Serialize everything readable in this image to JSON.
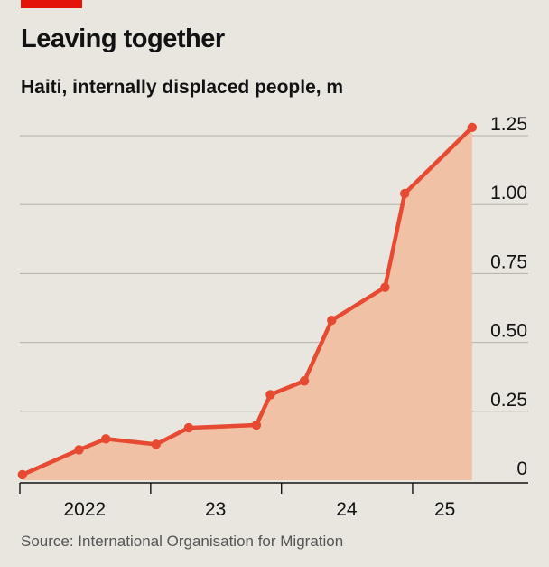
{
  "header": {
    "title": "Leaving together",
    "subtitle": "Haiti, internally displaced people, m"
  },
  "footer": {
    "source": "Source: International Organisation for Migration"
  },
  "colors": {
    "line": "#e64a32",
    "area": "#f1c1a6",
    "grid": "#b4b0a8",
    "axis": "#121212",
    "tag": "#e3120b"
  },
  "chart_data": {
    "type": "area",
    "title": "Leaving together",
    "subtitle": "Haiti, internally displaced people, m",
    "xlabel": "",
    "ylabel": "",
    "ylim": [
      0,
      1.25
    ],
    "xlim": [
      "2022-01-01",
      "2025-06-01"
    ],
    "y_ticks": [
      {
        "value": 0,
        "label": "0"
      },
      {
        "value": 0.25,
        "label": "0.25"
      },
      {
        "value": 0.5,
        "label": "0.50"
      },
      {
        "value": 0.75,
        "label": "0.75"
      },
      {
        "value": 1.0,
        "label": "1.00"
      },
      {
        "value": 1.25,
        "label": "1.25"
      }
    ],
    "x_tick_marks": [
      "2023-01-01",
      "2024-01-01",
      "2025-01-01"
    ],
    "x_labels": [
      {
        "date": "2022-07-01",
        "label": "2022"
      },
      {
        "date": "2023-07-01",
        "label": "23"
      },
      {
        "date": "2024-07-01",
        "label": "24"
      },
      {
        "date": "2025-04-01",
        "label": "25"
      }
    ],
    "grid": true,
    "series": [
      {
        "points": [
          {
            "x": "2022-01-08",
            "y": 0.02
          },
          {
            "x": "2022-06-15",
            "y": 0.11
          },
          {
            "x": "2022-08-29",
            "y": 0.15
          },
          {
            "x": "2023-01-16",
            "y": 0.13
          },
          {
            "x": "2023-04-17",
            "y": 0.19
          },
          {
            "x": "2023-10-23",
            "y": 0.2
          },
          {
            "x": "2023-12-01",
            "y": 0.31
          },
          {
            "x": "2024-03-05",
            "y": 0.36
          },
          {
            "x": "2024-05-20",
            "y": 0.58
          },
          {
            "x": "2024-10-16",
            "y": 0.7
          },
          {
            "x": "2024-12-10",
            "y": 1.04
          },
          {
            "x": "2025-06-16",
            "y": 1.28
          }
        ]
      }
    ]
  }
}
